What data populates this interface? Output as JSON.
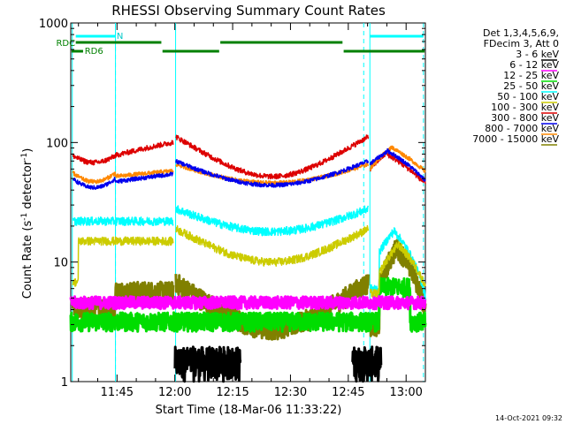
{
  "chart_data": {
    "type": "line",
    "title": "RHESSI Observing Summary Count Rates",
    "xlabel": "Start Time (18-Mar-06 11:33:22)",
    "ylabel": "Count Rate (s⁻¹ detector⁻¹)",
    "ylabel_base": "Count Rate (s",
    "ylabel_mid": " detector",
    "ylabel_end": ")",
    "ylabel_sup": "-1",
    "yscale": "log",
    "ylim": [
      1,
      1000
    ],
    "xlim_minutes": [
      0,
      92
    ],
    "x_ticks": [
      {
        "minute": 12,
        "label": "11:45"
      },
      {
        "minute": 27,
        "label": "12:00"
      },
      {
        "minute": 42,
        "label": "12:15"
      },
      {
        "minute": 57,
        "label": "12:30"
      },
      {
        "minute": 72,
        "label": "12:45"
      },
      {
        "minute": 87,
        "label": "13:00"
      }
    ],
    "y_ticks": [
      {
        "value": 1,
        "label": "1"
      },
      {
        "value": 10,
        "label": "10"
      },
      {
        "value": 100,
        "label": "100"
      },
      {
        "value": 1000,
        "label": "1000"
      }
    ],
    "legend_header": [
      "Det 1,3,4,5,6,9,",
      "FDecim 3, Att 0"
    ],
    "legend_position": "right",
    "series": [
      {
        "name": "3 - 6 keV",
        "color": "#000000"
      },
      {
        "name": "6 - 12 keV",
        "color": "#ff00ff"
      },
      {
        "name": "12 - 25 keV",
        "color": "#00dd00"
      },
      {
        "name": "25 - 50 keV",
        "color": "#00ffff"
      },
      {
        "name": "50 - 100 keV",
        "color": "#cccc00"
      },
      {
        "name": "100 - 300 keV",
        "color": "#dd0000"
      },
      {
        "name": "300 - 800 keV",
        "color": "#0000ee"
      },
      {
        "name": "800 - 7000 keV",
        "color": "#ff8800"
      },
      {
        "name": "7000 - 15000 keV",
        "color": "#808000"
      }
    ],
    "flag_labels": {
      "rdc": "RDC",
      "rd6": "RD6",
      "n": "N"
    },
    "footer_timestamp": "14-Oct-2021 09:32"
  }
}
